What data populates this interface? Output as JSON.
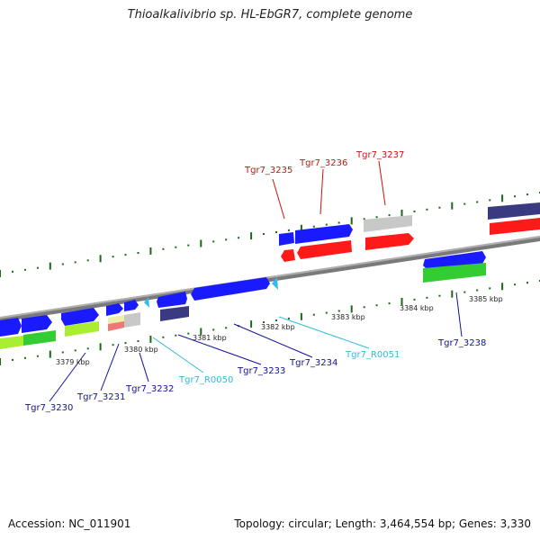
{
  "title": "Thioalkalivibrio sp. HL-EbGR7, complete genome",
  "accession": "Accession: NC_011901",
  "summary": "Topology: circular; Length: 3,464,554 bp; Genes: 3,330",
  "colors": {
    "backbone": "#8a8a8a",
    "gene_blue": "#1a1aff",
    "gene_red": "#ff1a1a",
    "gene_green": "#33cc33",
    "gene_lime": "#aaee33",
    "gene_navy": "#3a3a80",
    "gene_grey": "#c8c8c8",
    "rna_cyan": "#33bbee",
    "tick_green": "#1a6a1a",
    "label_red": "#cc1111",
    "label_blue": "#111199",
    "label_cyan": "#33bbdd"
  },
  "scale_labels": [
    "3379 kbp",
    "3380 kbp",
    "3381 kbp",
    "3382 kbp",
    "3383 kbp",
    "3384 kbp",
    "3385 kbp"
  ],
  "gene_labels": [
    {
      "name": "Tgr7_3235",
      "color": "red"
    },
    {
      "name": "Tgr7_3236",
      "color": "red"
    },
    {
      "name": "Tgr7_3237",
      "color": "red"
    },
    {
      "name": "Tgr7_3230",
      "color": "blue"
    },
    {
      "name": "Tgr7_3231",
      "color": "blue"
    },
    {
      "name": "Tgr7_3232",
      "color": "blue"
    },
    {
      "name": "Tgr7_R0050",
      "color": "cyan"
    },
    {
      "name": "Tgr7_3233",
      "color": "blue"
    },
    {
      "name": "Tgr7_3234",
      "color": "blue"
    },
    {
      "name": "Tgr7_R0051",
      "color": "cyan"
    },
    {
      "name": "Tgr7_3238",
      "color": "blue"
    }
  ]
}
